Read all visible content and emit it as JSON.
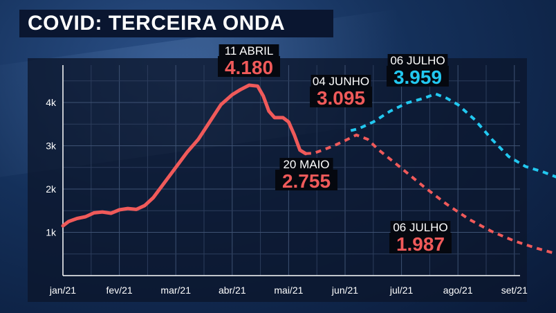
{
  "title": "COVID: TERCEIRA ONDA",
  "chart_data": {
    "type": "line",
    "x_categories": [
      "jan/21",
      "fev/21",
      "mar/21",
      "abr/21",
      "mai/21",
      "jun/21",
      "jul/21",
      "ago/21",
      "set/21"
    ],
    "y_ticks": [
      "1k",
      "2k",
      "3k",
      "4k"
    ],
    "ylim": [
      0,
      4700
    ],
    "series": [
      {
        "key": "observed",
        "style": "solid",
        "color": "#f05a5a",
        "points": [
          [
            0.0,
            1150
          ],
          [
            0.1,
            1250
          ],
          [
            0.25,
            1320
          ],
          [
            0.4,
            1360
          ],
          [
            0.55,
            1450
          ],
          [
            0.7,
            1470
          ],
          [
            0.85,
            1440
          ],
          [
            1.0,
            1520
          ],
          [
            1.15,
            1550
          ],
          [
            1.3,
            1530
          ],
          [
            1.45,
            1620
          ],
          [
            1.6,
            1800
          ],
          [
            1.8,
            2150
          ],
          [
            2.0,
            2500
          ],
          [
            2.2,
            2850
          ],
          [
            2.4,
            3150
          ],
          [
            2.6,
            3550
          ],
          [
            2.8,
            3950
          ],
          [
            3.0,
            4180
          ],
          [
            3.15,
            4300
          ],
          [
            3.3,
            4400
          ],
          [
            3.45,
            4380
          ],
          [
            3.55,
            4150
          ],
          [
            3.65,
            3800
          ],
          [
            3.75,
            3650
          ],
          [
            3.9,
            3650
          ],
          [
            4.0,
            3550
          ],
          [
            4.1,
            3250
          ],
          [
            4.2,
            2900
          ],
          [
            4.3,
            2820
          ]
        ]
      },
      {
        "key": "proj-low",
        "style": "dashed",
        "color": "#f05a5a",
        "points": [
          [
            4.3,
            2820
          ],
          [
            4.45,
            2830
          ],
          [
            4.6,
            2900
          ],
          [
            4.8,
            3000
          ],
          [
            5.0,
            3120
          ],
          [
            5.2,
            3250
          ],
          [
            5.4,
            3150
          ],
          [
            5.6,
            2900
          ],
          [
            6.0,
            2480
          ],
          [
            6.4,
            2050
          ],
          [
            6.8,
            1650
          ],
          [
            7.2,
            1300
          ],
          [
            7.6,
            1020
          ],
          [
            8.0,
            800
          ],
          [
            8.4,
            630
          ],
          [
            8.7,
            520
          ]
        ]
      },
      {
        "key": "proj-high",
        "style": "dashed",
        "color": "#22c8f0",
        "points": [
          [
            5.1,
            3350
          ],
          [
            5.25,
            3400
          ],
          [
            5.5,
            3550
          ],
          [
            5.8,
            3800
          ],
          [
            6.1,
            3990
          ],
          [
            6.4,
            4100
          ],
          [
            6.6,
            4200
          ],
          [
            6.8,
            4100
          ],
          [
            7.0,
            3950
          ],
          [
            7.3,
            3600
          ],
          [
            7.6,
            3150
          ],
          [
            7.9,
            2750
          ],
          [
            8.2,
            2520
          ],
          [
            8.5,
            2400
          ],
          [
            8.8,
            2250
          ]
        ]
      }
    ],
    "annotations": [
      {
        "date": "11 ABRIL",
        "value": "4.180",
        "color": "#f05a5a"
      },
      {
        "date": "04 JUNHO",
        "value": "3.095",
        "color": "#f05a5a"
      },
      {
        "date": "06 JULHO",
        "value": "3.959",
        "color": "#22c8f0"
      },
      {
        "date": "20 MAIO",
        "value": "2.755",
        "color": "#f05a5a"
      },
      {
        "date": "06 JULHO",
        "value": "1.987",
        "color": "#f05a5a"
      }
    ]
  }
}
